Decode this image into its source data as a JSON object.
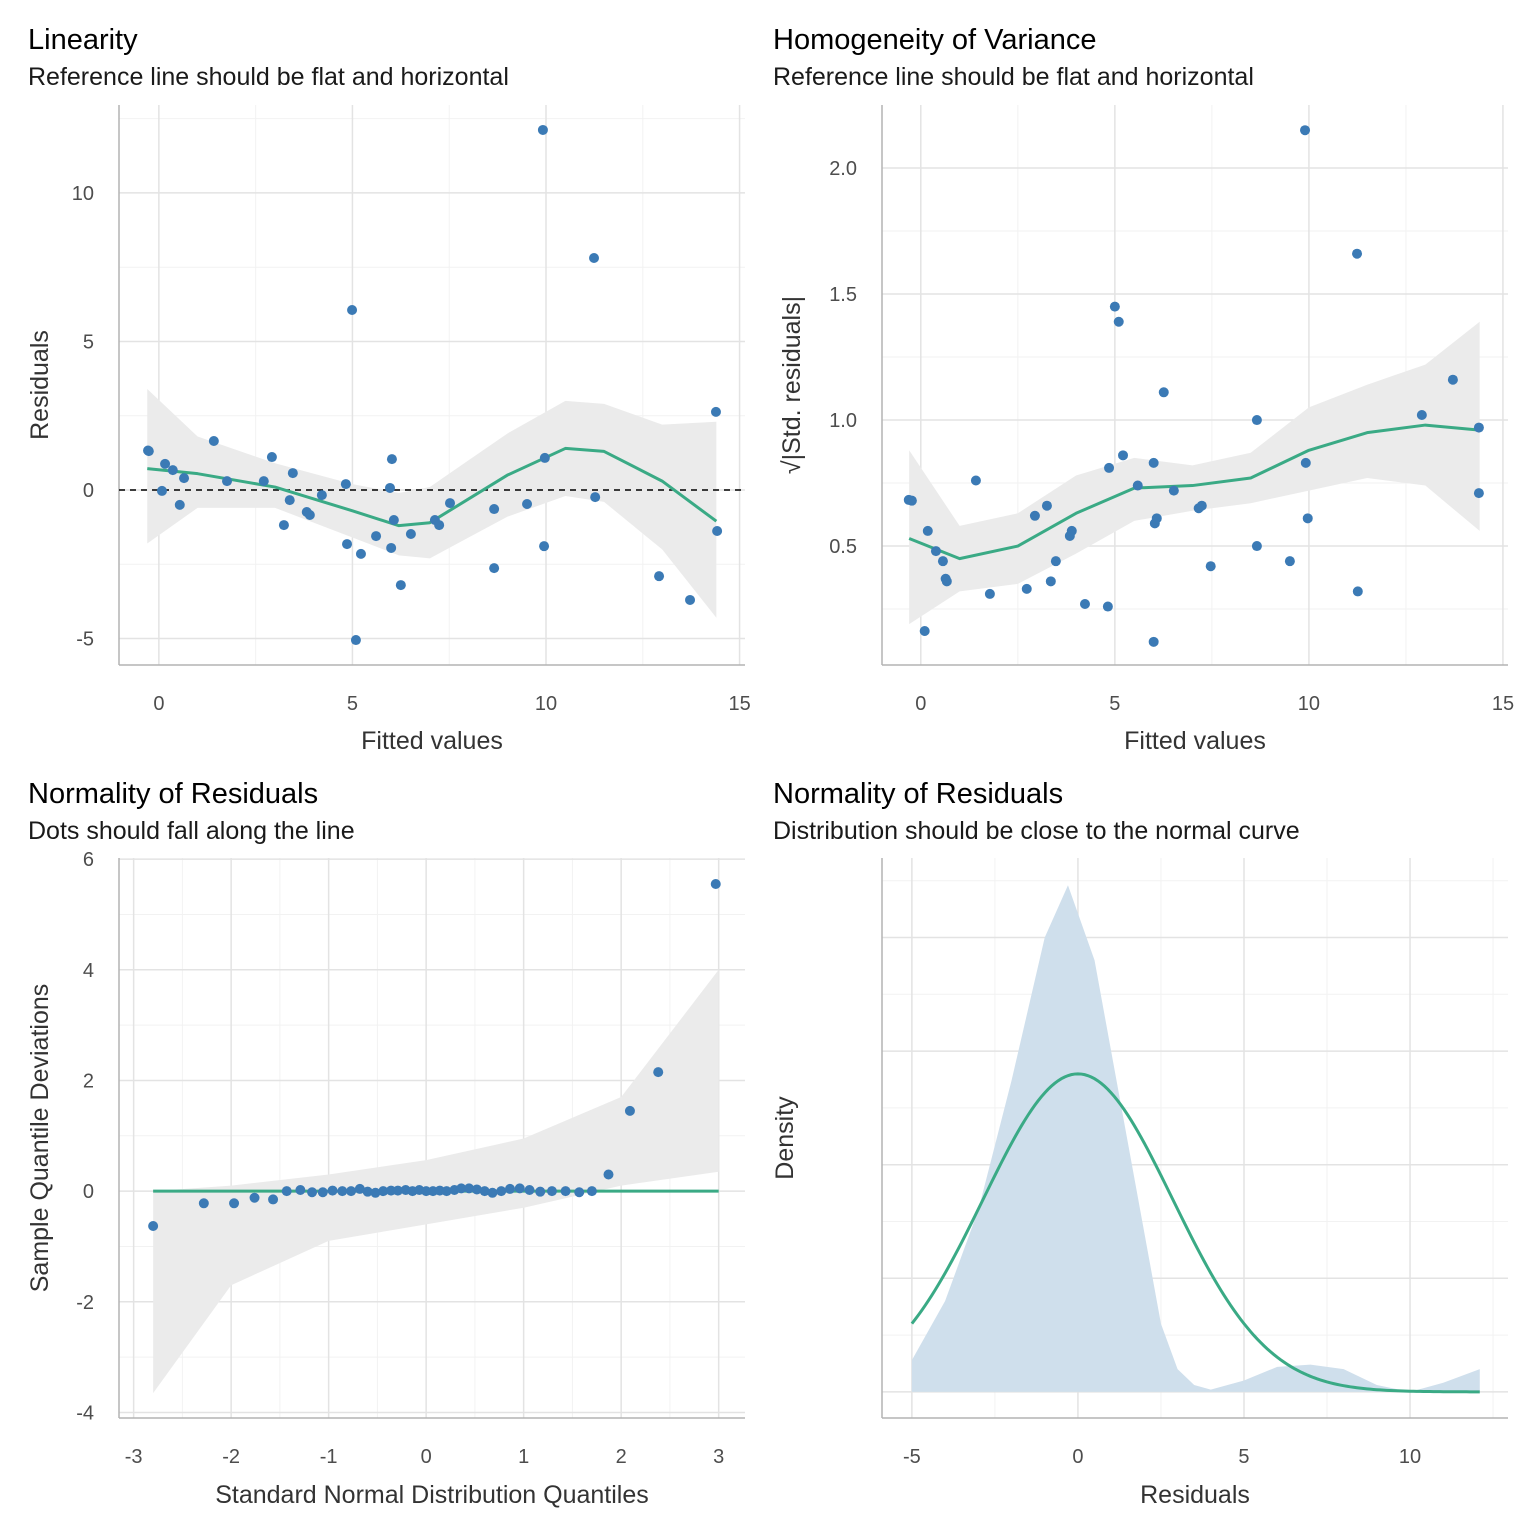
{
  "colors": {
    "points": "#3b7ab5",
    "smooth": "#3aaa85",
    "band": "#ebebeb",
    "density_fill": "#cfdfec",
    "grid_major": "#e3e3e3",
    "grid_minor": "#f2f2f2",
    "axis": "#b3b3b3",
    "reference_line": "#000000"
  },
  "chart_data": [
    {
      "type": "scatter",
      "title": "Linearity",
      "subtitle": "Reference line should be flat and horizontal",
      "xlabel": "Fitted values",
      "ylabel": "Residuals",
      "xlim": [
        -1.03,
        15.14
      ],
      "ylim": [
        -5.89,
        12.96
      ],
      "xticks": [
        0,
        5,
        10,
        15
      ],
      "yticks": [
        -5,
        0,
        5,
        10
      ],
      "xminor": [
        2.5,
        7.5,
        12.5
      ],
      "yminor": [
        -2.5,
        2.5,
        7.5,
        12.5
      ],
      "grid": true,
      "reference_line": {
        "y": 0,
        "style": "dashed"
      },
      "points": [
        [
          -0.26,
          1.31
        ],
        [
          -0.28,
          1.33
        ],
        [
          0.16,
          0.88
        ],
        [
          0.08,
          -0.03
        ],
        [
          0.36,
          0.67
        ],
        [
          0.65,
          0.4
        ],
        [
          0.54,
          -0.5
        ],
        [
          1.42,
          1.65
        ],
        [
          1.76,
          0.3
        ],
        [
          2.71,
          0.3
        ],
        [
          2.92,
          1.11
        ],
        [
          3.23,
          -1.18
        ],
        [
          3.38,
          -0.34
        ],
        [
          3.46,
          0.57
        ],
        [
          3.82,
          -0.74
        ],
        [
          3.9,
          -0.84
        ],
        [
          4.21,
          -0.17
        ],
        [
          4.83,
          0.2
        ],
        [
          4.86,
          -1.82
        ],
        [
          4.99,
          6.06
        ],
        [
          5.22,
          -2.15
        ],
        [
          5.09,
          -5.05
        ],
        [
          5.61,
          -1.55
        ],
        [
          5.97,
          0.07
        ],
        [
          6.02,
          1.04
        ],
        [
          6.0,
          -1.95
        ],
        [
          6.07,
          -1.01
        ],
        [
          6.25,
          -3.2
        ],
        [
          6.51,
          -1.48
        ],
        [
          7.13,
          -1.01
        ],
        [
          7.24,
          -1.18
        ],
        [
          7.52,
          -0.44
        ],
        [
          8.66,
          -0.64
        ],
        [
          8.66,
          -2.63
        ],
        [
          9.51,
          -0.47
        ],
        [
          9.92,
          12.12
        ],
        [
          9.97,
          1.08
        ],
        [
          9.95,
          -1.89
        ],
        [
          11.24,
          7.81
        ],
        [
          11.27,
          -0.24
        ],
        [
          12.92,
          -2.9
        ],
        [
          13.72,
          -3.7
        ],
        [
          14.39,
          2.63
        ],
        [
          14.42,
          -1.38
        ]
      ],
      "smooth": {
        "x": [
          -0.3,
          1,
          3,
          5,
          6.2,
          7,
          8,
          9,
          10.5,
          11.5,
          13,
          14.4
        ],
        "y": [
          0.72,
          0.55,
          0.1,
          -0.7,
          -1.2,
          -1.1,
          -0.3,
          0.5,
          1.4,
          1.3,
          0.3,
          -1.05
        ],
        "ymin": [
          -1.8,
          -0.6,
          -0.6,
          -1.6,
          -2.2,
          -2.3,
          -1.6,
          -0.9,
          -0.2,
          -0.4,
          -2.0,
          -4.3
        ],
        "ymax": [
          3.4,
          1.8,
          0.9,
          0.2,
          -0.1,
          0.1,
          1.0,
          1.9,
          3.0,
          2.9,
          2.2,
          2.3
        ]
      }
    },
    {
      "type": "scatter",
      "title": "Homogeneity of Variance",
      "subtitle": "Reference line should be flat and horizontal",
      "xlabel": "Fitted values",
      "ylabel": "√|Std. residuals|",
      "xlim": [
        -1.0,
        15.13
      ],
      "ylim": [
        0.028,
        2.25
      ],
      "xticks": [
        0,
        5,
        10,
        15
      ],
      "yticks": [
        0.5,
        1.0,
        1.5,
        2.0
      ],
      "ytick_labels": [
        "0.5",
        "1.0",
        "1.5",
        "2.0"
      ],
      "xminor": [
        2.5,
        7.5,
        12.5
      ],
      "yminor": [
        0.25,
        0.75,
        1.25,
        1.75
      ],
      "grid": true,
      "points": [
        [
          -0.31,
          0.683
        ],
        [
          -0.23,
          0.68
        ],
        [
          0.18,
          0.56
        ],
        [
          0.1,
          0.163
        ],
        [
          0.39,
          0.48
        ],
        [
          0.57,
          0.44
        ],
        [
          0.64,
          0.37
        ],
        [
          0.67,
          0.36
        ],
        [
          1.42,
          0.76
        ],
        [
          1.78,
          0.31
        ],
        [
          2.73,
          0.33
        ],
        [
          2.94,
          0.62
        ],
        [
          3.25,
          0.66
        ],
        [
          3.35,
          0.36
        ],
        [
          3.48,
          0.44
        ],
        [
          3.84,
          0.54
        ],
        [
          3.89,
          0.56
        ],
        [
          4.23,
          0.27
        ],
        [
          4.82,
          0.26
        ],
        [
          4.85,
          0.81
        ],
        [
          5.0,
          1.45
        ],
        [
          5.1,
          1.39
        ],
        [
          5.21,
          0.86
        ],
        [
          5.59,
          0.74
        ],
        [
          6.0,
          0.12
        ],
        [
          6.0,
          0.83
        ],
        [
          6.03,
          0.59
        ],
        [
          6.08,
          0.61
        ],
        [
          6.26,
          1.11
        ],
        [
          6.52,
          0.72
        ],
        [
          7.16,
          0.65
        ],
        [
          7.24,
          0.66
        ],
        [
          7.47,
          0.42
        ],
        [
          8.66,
          0.5
        ],
        [
          8.66,
          1.0
        ],
        [
          9.51,
          0.44
        ],
        [
          9.9,
          2.15
        ],
        [
          9.92,
          0.83
        ],
        [
          9.97,
          0.61
        ],
        [
          11.24,
          1.66
        ],
        [
          11.26,
          0.32
        ],
        [
          12.91,
          1.02
        ],
        [
          13.71,
          1.16
        ],
        [
          14.38,
          0.97
        ],
        [
          14.38,
          0.71
        ]
      ],
      "smooth": {
        "x": [
          -0.3,
          1,
          2.5,
          4,
          5.5,
          7,
          8.5,
          10,
          11.5,
          13,
          14.4
        ],
        "y": [
          0.53,
          0.45,
          0.5,
          0.63,
          0.73,
          0.74,
          0.77,
          0.88,
          0.95,
          0.98,
          0.96
        ],
        "ymin": [
          0.19,
          0.32,
          0.35,
          0.47,
          0.6,
          0.64,
          0.67,
          0.72,
          0.77,
          0.74,
          0.56
        ],
        "ymax": [
          0.88,
          0.58,
          0.63,
          0.78,
          0.85,
          0.82,
          0.87,
          1.05,
          1.14,
          1.22,
          1.39
        ]
      }
    },
    {
      "type": "scatter",
      "title": "Normality of Residuals",
      "subtitle": "Dots should fall along the line",
      "xlabel": "Standard Normal Distribution Quantiles",
      "ylabel": "Sample Quantile Deviations",
      "xlim": [
        -3.15,
        3.27
      ],
      "ylim": [
        -4.1,
        6.02
      ],
      "xticks": [
        -3,
        -2,
        -1,
        0,
        1,
        2,
        3
      ],
      "yticks": [
        -4,
        -2,
        0,
        2,
        4,
        6
      ],
      "xminor": [
        -2.5,
        -1.5,
        -0.5,
        0.5,
        1.5,
        2.5
      ],
      "yminor": [
        -3,
        -1,
        1,
        3,
        5
      ],
      "grid": true,
      "points": [
        [
          -2.8,
          -0.63
        ],
        [
          -2.28,
          -0.22
        ],
        [
          -1.97,
          -0.22
        ],
        [
          -1.76,
          -0.12
        ],
        [
          -1.57,
          -0.15
        ],
        [
          -1.43,
          0.0
        ],
        [
          -1.29,
          0.02
        ],
        [
          -1.17,
          -0.02
        ],
        [
          -1.06,
          -0.02
        ],
        [
          -0.96,
          0.01
        ],
        [
          -0.86,
          0.0
        ],
        [
          -0.77,
          0.0
        ],
        [
          -0.68,
          0.04
        ],
        [
          -0.6,
          -0.01
        ],
        [
          -0.52,
          -0.03
        ],
        [
          -0.44,
          0.0
        ],
        [
          -0.36,
          0.01
        ],
        [
          -0.29,
          0.01
        ],
        [
          -0.21,
          0.02
        ],
        [
          -0.14,
          0.0
        ],
        [
          -0.07,
          0.02
        ],
        [
          0.0,
          0.0
        ],
        [
          0.07,
          0.0
        ],
        [
          0.14,
          0.01
        ],
        [
          0.21,
          0.0
        ],
        [
          0.29,
          0.02
        ],
        [
          0.36,
          0.05
        ],
        [
          0.44,
          0.05
        ],
        [
          0.52,
          0.03
        ],
        [
          0.6,
          0.0
        ],
        [
          0.68,
          -0.03
        ],
        [
          0.77,
          0.0
        ],
        [
          0.86,
          0.04
        ],
        [
          0.96,
          0.05
        ],
        [
          1.06,
          0.02
        ],
        [
          1.17,
          -0.01
        ],
        [
          1.29,
          0.0
        ],
        [
          1.43,
          0.0
        ],
        [
          1.57,
          -0.02
        ],
        [
          1.7,
          0.0
        ],
        [
          1.87,
          0.3
        ],
        [
          2.09,
          1.45
        ],
        [
          2.38,
          2.15
        ],
        [
          2.97,
          5.55
        ]
      ],
      "smooth": {
        "x": [
          -2.8,
          -2,
          -1,
          0,
          1,
          2,
          3
        ],
        "y": [
          0,
          0,
          0,
          0,
          0,
          0,
          0
        ],
        "ymin": [
          -3.65,
          -1.7,
          -0.9,
          -0.6,
          -0.3,
          0.1,
          0.35
        ],
        "ymax": [
          0.0,
          0.1,
          0.3,
          0.56,
          0.95,
          1.7,
          4.0
        ]
      }
    },
    {
      "type": "area",
      "title": "Normality of Residuals",
      "subtitle": "Distribution should be close to the normal curve",
      "xlabel": "Residuals",
      "ylabel": "Density",
      "xlim": [
        -5.9,
        12.95
      ],
      "ylim": [
        -0.0115,
        0.235
      ],
      "xticks": [
        -5,
        0,
        5,
        10
      ],
      "yticks": [
        0,
        0.05,
        0.1,
        0.15,
        0.2
      ],
      "show_ytick_labels": false,
      "xminor": [
        -2.5,
        2.5,
        7.5,
        12.5
      ],
      "yminor": [
        0.025,
        0.075,
        0.125,
        0.175,
        0.225
      ],
      "grid": true,
      "density": {
        "x": [
          -5,
          -4,
          -3,
          -2,
          -1,
          -0.3,
          0.5,
          1,
          1.5,
          2,
          2.5,
          3,
          3.5,
          4,
          5,
          6,
          7,
          8,
          9,
          10,
          11,
          12.1
        ],
        "y": [
          0.014,
          0.04,
          0.08,
          0.137,
          0.2,
          0.223,
          0.19,
          0.15,
          0.11,
          0.07,
          0.03,
          0.01,
          0.003,
          0.001,
          0.005,
          0.011,
          0.012,
          0.01,
          0.003,
          0.0,
          0.004,
          0.01
        ]
      },
      "normal_curve": {
        "mean": 0,
        "sd": 2.85,
        "x_range": [
          -5,
          12.1
        ]
      }
    }
  ]
}
